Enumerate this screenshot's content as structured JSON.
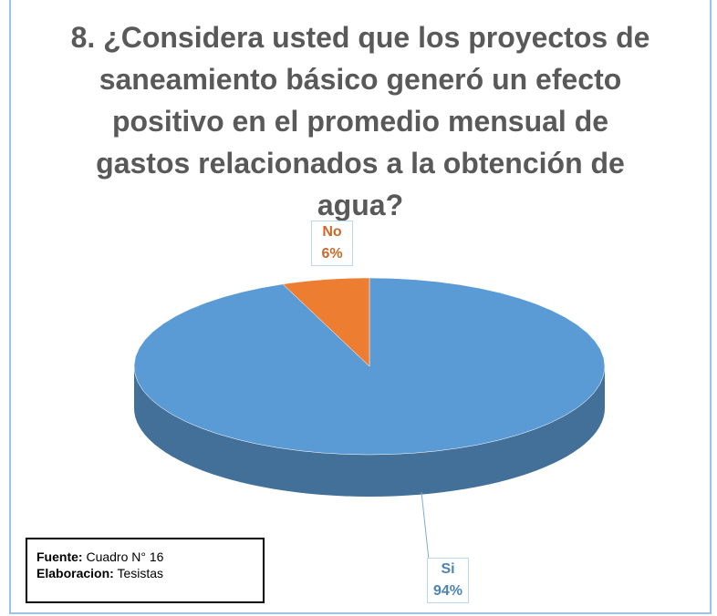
{
  "chart_data": {
    "type": "pie",
    "title": "8. ¿Considera usted que los proyectos de saneamiento básico generó un efecto positivo en el promedio mensual de gastos relacionados a la obtención de agua?",
    "categories": [
      "Si",
      "No"
    ],
    "values": [
      94,
      6
    ],
    "value_labels": [
      "94%",
      "6%"
    ],
    "colors": [
      "#5b9bd5",
      "#ed7d31"
    ]
  },
  "source": {
    "fuente_label": "Fuente:",
    "fuente": "Cuadro N° 16",
    "elaboracion_label": "Elaboracion:",
    "elaboracion": "Tesistas"
  }
}
